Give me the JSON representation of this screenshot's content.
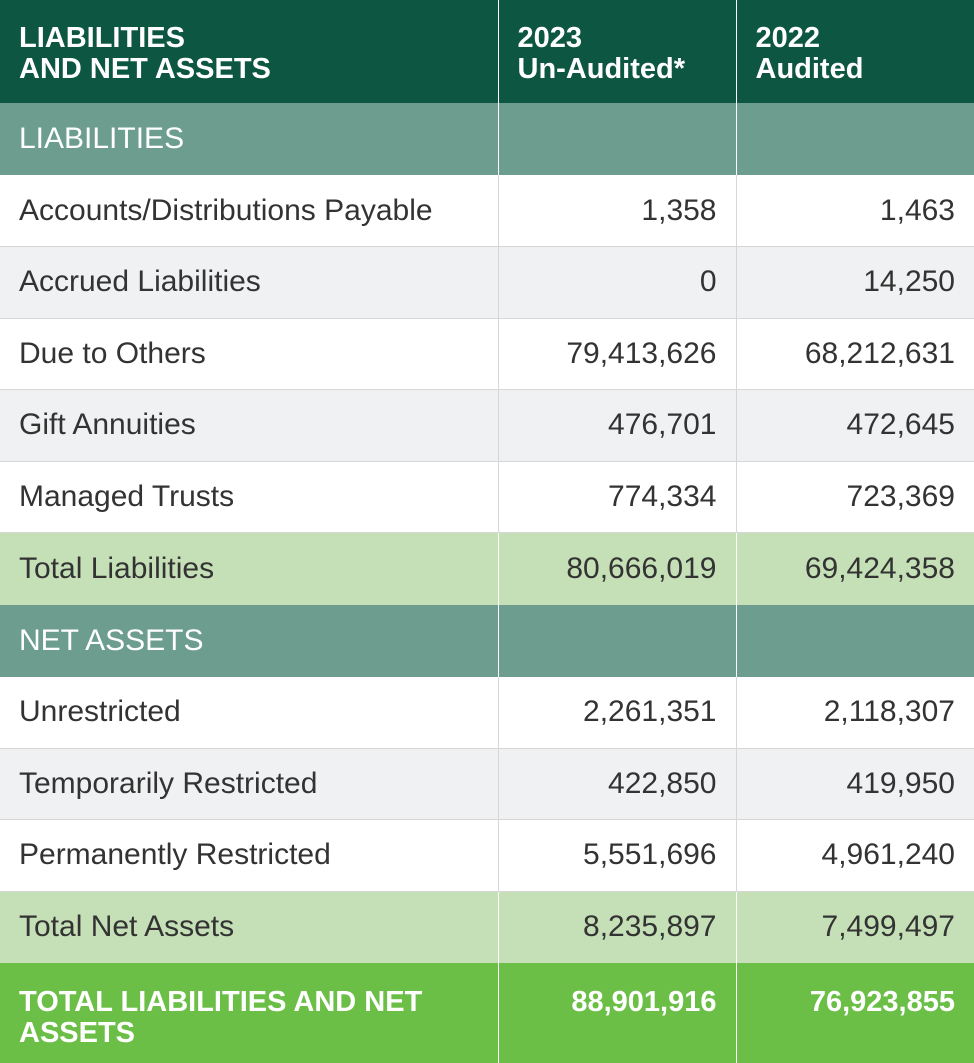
{
  "header": {
    "col1_line1": "LIABILITIES",
    "col1_line2": "AND NET ASSETS",
    "col2_line1": "2023",
    "col2_line2": "Un-Audited*",
    "col3_line1": "2022",
    "col3_line2": "Audited"
  },
  "liabilities": {
    "section_label": "LIABILITIES",
    "rows": [
      {
        "label": "Accounts/Distributions Payable",
        "y2023": "1,358",
        "y2022": "1,463"
      },
      {
        "label": "Accrued Liabilities",
        "y2023": "0",
        "y2022": "14,250"
      },
      {
        "label": "Due to Others",
        "y2023": "79,413,626",
        "y2022": "68,212,631"
      },
      {
        "label": "Gift Annuities",
        "y2023": "476,701",
        "y2022": "472,645"
      },
      {
        "label": "Managed Trusts",
        "y2023": "774,334",
        "y2022": "723,369"
      }
    ],
    "total": {
      "label": "Total Liabilities",
      "y2023": "80,666,019",
      "y2022": "69,424,358"
    }
  },
  "net_assets": {
    "section_label": "NET ASSETS",
    "rows": [
      {
        "label": "Unrestricted",
        "y2023": "2,261,351",
        "y2022": "2,118,307"
      },
      {
        "label": "Temporarily Restricted",
        "y2023": "422,850",
        "y2022": "419,950"
      },
      {
        "label": "Permanently Restricted",
        "y2023": "5,551,696",
        "y2022": "4,961,240"
      }
    ],
    "total": {
      "label": "Total Net Assets",
      "y2023": "8,235,897",
      "y2022": "7,499,497"
    }
  },
  "grand_total": {
    "label": "TOTAL LIABILITIES AND NET ASSETS",
    "y2023": "88,901,916",
    "y2022": "76,923,855"
  },
  "colors": {
    "header": "#0d5642",
    "section": "#6c9d8e",
    "subtotal": "#c5e0b7",
    "grand_total": "#6bbf47",
    "row_alt": "#f0f1f2"
  }
}
